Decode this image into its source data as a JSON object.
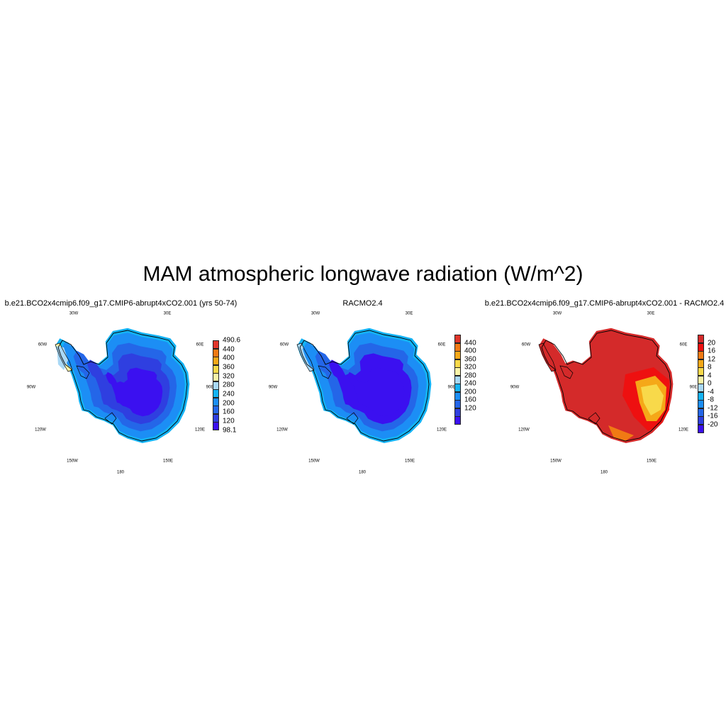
{
  "title": "MAM atmospheric longwave radiation (W/m^2)",
  "panels": [
    {
      "title": "b.e21.BCO2x4cmip6.f09_g17.CMIP6-abrupt4xCO2.001 (yrs 50-74)",
      "lon_labels": {
        "top_left": "30W",
        "top_right": "30E",
        "ul": "60W",
        "ur": "60E",
        "left": "90W",
        "right": "90E",
        "ll": "120W",
        "lr": "120E",
        "bl": "150W",
        "br": "150E",
        "bottom": "180"
      },
      "colorbar": {
        "colors": [
          "#3b10f0",
          "#2f3fe0",
          "#2466e8",
          "#1c8ef5",
          "#14b3f5",
          "#a9d8f5",
          "#f9f4a8",
          "#f8d94a",
          "#f5a818",
          "#f07a14",
          "#e0352a"
        ],
        "labels": [
          "98.1",
          "120",
          "160",
          "200",
          "240",
          "280",
          "320",
          "360",
          "400",
          "440",
          "490.6"
        ],
        "label_mode": "edges"
      },
      "palette": {
        "interior": "#3b10f0",
        "inner": "#2f3fe0",
        "mid": "#2466e8",
        "outer": "#1c8ef5",
        "rim": "#14b3f5",
        "pale": "#a9d8f5",
        "yellow": "#f9f4a8"
      }
    },
    {
      "title": "RACMO2.4",
      "lon_labels": {
        "top_left": "30W",
        "top_right": "30E",
        "ul": "60W",
        "ur": "60E",
        "left": "90W",
        "right": "90E",
        "ll": "120W",
        "lr": "120E",
        "bl": "150W",
        "br": "150E",
        "bottom": "180"
      },
      "colorbar": {
        "colors": [
          "#3b10f0",
          "#2f3fe0",
          "#2466e8",
          "#1c8ef5",
          "#14b3f5",
          "#a9d8f5",
          "#f9f4a8",
          "#f8d94a",
          "#f5a818",
          "#f07a14",
          "#e0352a"
        ],
        "labels": [
          "120",
          "160",
          "200",
          "240",
          "280",
          "320",
          "360",
          "400",
          "440"
        ],
        "label_mode": "inner"
      },
      "palette": {
        "interior": "#3b10f0",
        "inner": "#3b10f0",
        "mid": "#2466e8",
        "outer": "#1c8ef5",
        "rim": "#14b3f5",
        "pale": "#a9d8f5",
        "yellow": "#a9d8f5"
      }
    },
    {
      "title": "b.e21.BCO2x4cmip6.f09_g17.CMIP6-abrupt4xCO2.001 - RACMO2.4",
      "lon_labels": {
        "top_left": "30W",
        "top_right": "30E",
        "ul": "60W",
        "ur": "60E",
        "left": "90W",
        "right": "90E",
        "ll": "120W",
        "lr": "120E",
        "bl": "150W",
        "br": "150E",
        "bottom": "180"
      },
      "colorbar": {
        "colors": [
          "#3b10f0",
          "#2f3fe0",
          "#2466e8",
          "#1c8ef5",
          "#14b3f5",
          "#a9d8f5",
          "#f9f4a8",
          "#f8d94a",
          "#f5a818",
          "#f07a14",
          "#ee1010",
          "#d42a2a"
        ],
        "labels": [
          "-20",
          "-16",
          "-12",
          "-8",
          "-4",
          "0",
          "4",
          "8",
          "12",
          "16",
          "20"
        ],
        "label_mode": "inner"
      },
      "palette": {
        "base": "#d42a2a",
        "hot": "#ee1010",
        "warm": "#f07a14",
        "orange": "#f5a818",
        "yellow": "#f8d94a"
      }
    }
  ]
}
